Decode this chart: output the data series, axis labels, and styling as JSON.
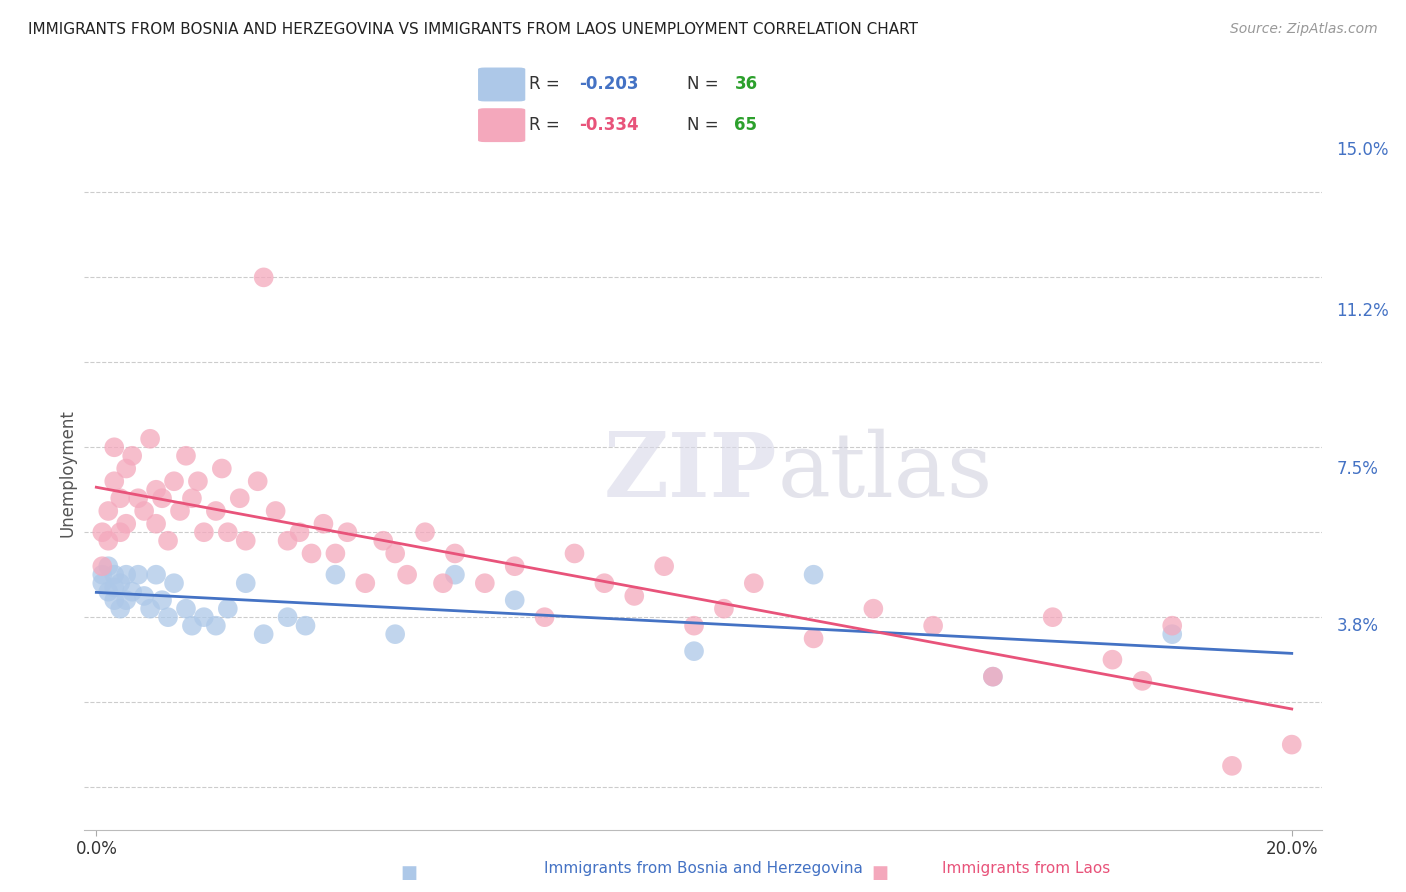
{
  "title": "IMMIGRANTS FROM BOSNIA AND HERZEGOVINA VS IMMIGRANTS FROM LAOS UNEMPLOYMENT CORRELATION CHART",
  "source": "Source: ZipAtlas.com",
  "ylabel": "Unemployment",
  "yticks": [
    0.0,
    0.038,
    0.075,
    0.112,
    0.15
  ],
  "ytick_labels": [
    "",
    "3.8%",
    "7.5%",
    "11.2%",
    "15.0%"
  ],
  "xtick_positions": [
    0.0,
    0.2
  ],
  "xtick_labels": [
    "0.0%",
    "20.0%"
  ],
  "xlim": [
    -0.002,
    0.205
  ],
  "ylim": [
    -0.01,
    0.158
  ],
  "r_bosnia": "-0.203",
  "n_bosnia": "36",
  "r_laos": "-0.334",
  "n_laos": "65",
  "color_bosnia": "#adc8e8",
  "color_laos": "#f4a8bc",
  "color_bosnia_line": "#4472c4",
  "color_laos_line": "#e8537a",
  "color_r_text": "#4472c4",
  "color_n_text": "#2ca02c",
  "watermark_zip": "ZIP",
  "watermark_atlas": "atlas",
  "bosnia_x": [
    0.001,
    0.001,
    0.002,
    0.002,
    0.003,
    0.003,
    0.003,
    0.004,
    0.004,
    0.005,
    0.005,
    0.006,
    0.007,
    0.008,
    0.009,
    0.01,
    0.011,
    0.012,
    0.013,
    0.015,
    0.016,
    0.018,
    0.02,
    0.022,
    0.025,
    0.028,
    0.032,
    0.035,
    0.04,
    0.05,
    0.06,
    0.07,
    0.1,
    0.12,
    0.15,
    0.18
  ],
  "bosnia_y": [
    0.05,
    0.048,
    0.052,
    0.046,
    0.05,
    0.047,
    0.044,
    0.048,
    0.042,
    0.05,
    0.044,
    0.046,
    0.05,
    0.045,
    0.042,
    0.05,
    0.044,
    0.04,
    0.048,
    0.042,
    0.038,
    0.04,
    0.038,
    0.042,
    0.048,
    0.036,
    0.04,
    0.038,
    0.05,
    0.036,
    0.05,
    0.044,
    0.032,
    0.05,
    0.026,
    0.036
  ],
  "laos_x": [
    0.001,
    0.001,
    0.002,
    0.002,
    0.003,
    0.003,
    0.004,
    0.004,
    0.005,
    0.005,
    0.006,
    0.007,
    0.008,
    0.009,
    0.01,
    0.01,
    0.011,
    0.012,
    0.013,
    0.014,
    0.015,
    0.016,
    0.017,
    0.018,
    0.02,
    0.021,
    0.022,
    0.024,
    0.025,
    0.027,
    0.028,
    0.03,
    0.032,
    0.034,
    0.036,
    0.038,
    0.04,
    0.042,
    0.045,
    0.048,
    0.05,
    0.052,
    0.055,
    0.058,
    0.06,
    0.065,
    0.07,
    0.075,
    0.08,
    0.085,
    0.09,
    0.095,
    0.1,
    0.105,
    0.11,
    0.12,
    0.13,
    0.14,
    0.15,
    0.16,
    0.17,
    0.175,
    0.18,
    0.19,
    0.2
  ],
  "laos_y": [
    0.06,
    0.052,
    0.065,
    0.058,
    0.072,
    0.08,
    0.068,
    0.06,
    0.075,
    0.062,
    0.078,
    0.068,
    0.065,
    0.082,
    0.07,
    0.062,
    0.068,
    0.058,
    0.072,
    0.065,
    0.078,
    0.068,
    0.072,
    0.06,
    0.065,
    0.075,
    0.06,
    0.068,
    0.058,
    0.072,
    0.12,
    0.065,
    0.058,
    0.06,
    0.055,
    0.062,
    0.055,
    0.06,
    0.048,
    0.058,
    0.055,
    0.05,
    0.06,
    0.048,
    0.055,
    0.048,
    0.052,
    0.04,
    0.055,
    0.048,
    0.045,
    0.052,
    0.038,
    0.042,
    0.048,
    0.035,
    0.042,
    0.038,
    0.026,
    0.04,
    0.03,
    0.025,
    0.038,
    0.005,
    0.01
  ]
}
